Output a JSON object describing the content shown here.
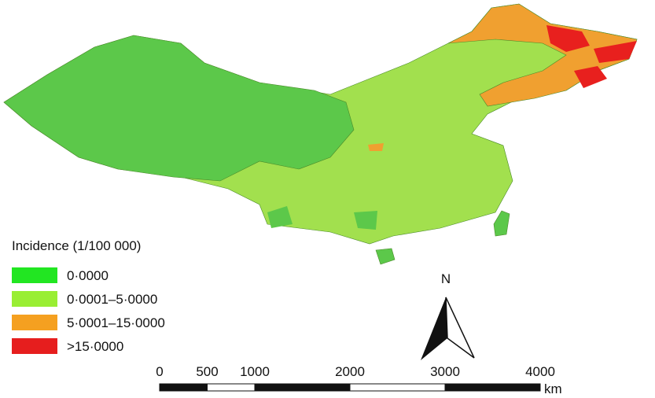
{
  "legend": {
    "title": "Incidence (1/100 000)",
    "items": [
      {
        "label": "0·0000",
        "color": "#22e622"
      },
      {
        "label": "0·0001–5·0000",
        "color": "#99ee33"
      },
      {
        "label": "5·0001–15·0000",
        "color": "#f5a020"
      },
      {
        "label": ">15·0000",
        "color": "#e61e1e"
      }
    ]
  },
  "north_label": "N",
  "scale_bar": {
    "ticks": [
      0,
      500,
      1000,
      2000,
      3000,
      4000
    ],
    "unit": "km"
  }
}
